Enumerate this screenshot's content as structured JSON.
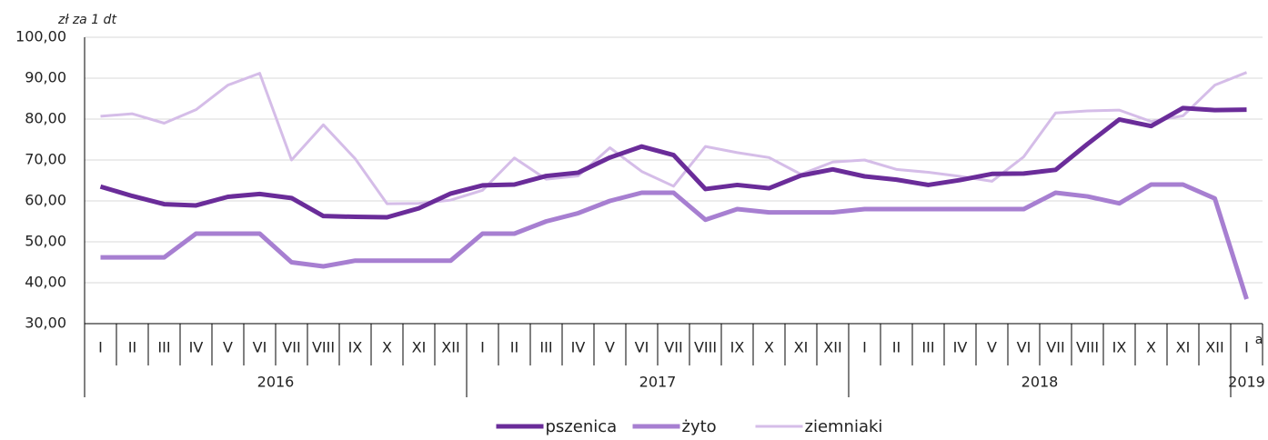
{
  "chart_data": {
    "type": "line",
    "y_axis_label": "zł za 1 dt",
    "annotation": "a",
    "categories": [
      "I",
      "II",
      "III",
      "IV",
      "V",
      "VI",
      "VII",
      "VIII",
      "IX",
      "X",
      "XI",
      "XII",
      "I",
      "II",
      "III",
      "IV",
      "V",
      "VI",
      "VII",
      "VIII",
      "IX",
      "X",
      "XI",
      "XII",
      "I",
      "II",
      "III",
      "IV",
      "V",
      "VI",
      "VII",
      "VIII",
      "IX",
      "X",
      "XI",
      "XII",
      "I"
    ],
    "years": [
      "2016",
      "2017",
      "2018",
      "2019"
    ],
    "ylim": [
      30,
      100
    ],
    "yticks": [
      {
        "value": 30,
        "label": "30,00"
      },
      {
        "value": 40,
        "label": "40,00"
      },
      {
        "value": 50,
        "label": "50,00"
      },
      {
        "value": 60,
        "label": "60,00"
      },
      {
        "value": 70,
        "label": "70,00"
      },
      {
        "value": 80,
        "label": "80,00"
      },
      {
        "value": 90,
        "label": "90,00"
      },
      {
        "value": 100,
        "label": "100,00"
      }
    ],
    "grid": true,
    "legend": "bottom",
    "series": [
      {
        "name": "pszenica",
        "color": "#6a2c99",
        "values": [
          63.5,
          61.2,
          59.2,
          58.9,
          61,
          61.7,
          60.7,
          56.3,
          56.1,
          56,
          58.2,
          61.8,
          63.8,
          64,
          66.1,
          66.9,
          70.6,
          73.3,
          71.2,
          62.9,
          63.9,
          63.1,
          66.2,
          67.7,
          66,
          65.2,
          63.9,
          65.1,
          66.6,
          66.7,
          67.6,
          73.9,
          79.9,
          78.3,
          82.7,
          82.2,
          82.3
        ]
      },
      {
        "name": "żyto",
        "color": "#a77fd1",
        "values": [
          46.2,
          46.2,
          46.2,
          52,
          52,
          52,
          45,
          44,
          45.4,
          45.4,
          45.4,
          45.4,
          52,
          52,
          55,
          57,
          60,
          62,
          62,
          55.4,
          58,
          57.2,
          57.2,
          57.2,
          58,
          58,
          58,
          58,
          58,
          58,
          62,
          61.1,
          59.4,
          64,
          64,
          60.6,
          36
        ]
      },
      {
        "name": "ziemniaki",
        "color": "#d5bde8",
        "values": [
          80.7,
          81.3,
          79,
          82.3,
          88.3,
          91.2,
          70,
          78.6,
          70.3,
          59.3,
          59.4,
          60.2,
          62.6,
          70.5,
          65.3,
          66.1,
          73,
          67.2,
          63.6,
          73.3,
          71.8,
          70.6,
          66.5,
          69.5,
          70,
          67.7,
          67,
          66,
          64.8,
          70.8,
          81.5,
          82,
          82.2,
          79.4,
          80.8,
          88.3,
          91.4
        ]
      }
    ]
  }
}
